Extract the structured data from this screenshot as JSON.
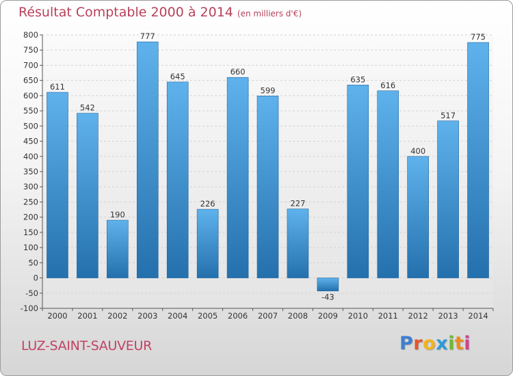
{
  "header": {
    "title": "Résultat Comptable 2000 à 2014",
    "subtitle": "(en milliers d'€)"
  },
  "footer": {
    "commune": "LUZ-SAINT-SAUVEUR",
    "logo_letters": [
      "P",
      "r",
      "o",
      "x",
      "i",
      "t",
      "i"
    ],
    "logo_colors": [
      "#3d7fd0",
      "#e7552d",
      "#f1b41f",
      "#2e9ad6",
      "#70b832",
      "#ec8a1e",
      "#d63f8e"
    ]
  },
  "colors": {
    "bar_top": "#5fb2ec",
    "bar_bottom": "#2470ad",
    "title": "#b8405a",
    "text": "#333333"
  },
  "chart_data": {
    "type": "bar",
    "title": "Résultat Comptable 2000 à 2014",
    "subtitle": "(en milliers d'€)",
    "categories": [
      "2000",
      "2001",
      "2002",
      "2003",
      "2004",
      "2005",
      "2006",
      "2007",
      "2008",
      "2009",
      "2010",
      "2011",
      "2012",
      "2013",
      "2014"
    ],
    "values": [
      611,
      542,
      190,
      777,
      645,
      226,
      660,
      599,
      227,
      -43,
      635,
      616,
      400,
      517,
      775
    ],
    "ylim": [
      -100,
      800
    ],
    "yticks": [
      -100,
      -50,
      0,
      50,
      100,
      150,
      200,
      250,
      300,
      350,
      400,
      450,
      500,
      550,
      600,
      650,
      700,
      750,
      800
    ],
    "grid": true
  }
}
